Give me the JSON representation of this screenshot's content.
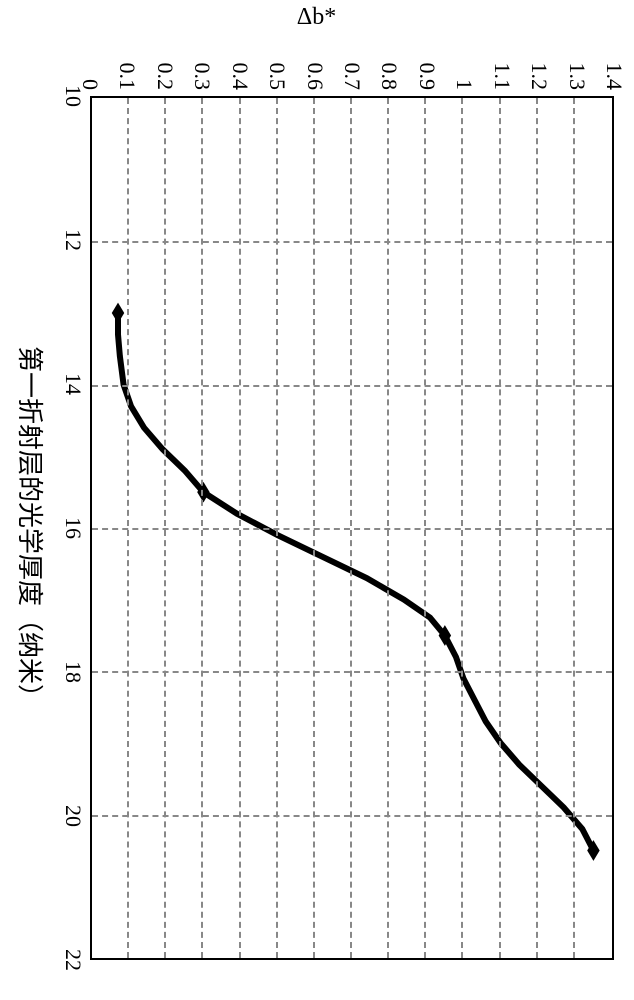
{
  "chart": {
    "type": "line",
    "xlabel": "第一折射层的光学厚度（纳米）",
    "ylabel": "Δb*",
    "xlim": [
      10,
      22
    ],
    "ylim": [
      0,
      1.4
    ],
    "xticks": [
      10,
      12,
      14,
      16,
      18,
      20,
      22
    ],
    "yticks": [
      0,
      0.1,
      0.2,
      0.3,
      0.4,
      0.5,
      0.6,
      0.7,
      0.8,
      0.9,
      1,
      1.1,
      1.2,
      1.3,
      1.4
    ],
    "grid_color": "#808080",
    "grid_dash": true,
    "background_color": "#ffffff",
    "border_color": "#000000",
    "label_fontsize": 24,
    "tick_fontsize": 22,
    "line_color": "#000000",
    "line_width": 3.0,
    "marker_color": "#000000",
    "marker_style": "diamond",
    "marker_size": 16,
    "data_points": [
      {
        "x": 13.0,
        "y": 0.07
      },
      {
        "x": 15.5,
        "y": 0.3
      },
      {
        "x": 17.5,
        "y": 0.95
      },
      {
        "x": 20.5,
        "y": 1.35
      }
    ],
    "curve": [
      {
        "x": 13.0,
        "y": 0.07
      },
      {
        "x": 13.3,
        "y": 0.07
      },
      {
        "x": 13.6,
        "y": 0.075
      },
      {
        "x": 14.0,
        "y": 0.085
      },
      {
        "x": 14.3,
        "y": 0.105
      },
      {
        "x": 14.6,
        "y": 0.14
      },
      {
        "x": 14.9,
        "y": 0.19
      },
      {
        "x": 15.2,
        "y": 0.25
      },
      {
        "x": 15.5,
        "y": 0.3
      },
      {
        "x": 15.8,
        "y": 0.39
      },
      {
        "x": 16.1,
        "y": 0.5
      },
      {
        "x": 16.4,
        "y": 0.62
      },
      {
        "x": 16.7,
        "y": 0.74
      },
      {
        "x": 17.0,
        "y": 0.84
      },
      {
        "x": 17.25,
        "y": 0.91
      },
      {
        "x": 17.5,
        "y": 0.95
      },
      {
        "x": 17.8,
        "y": 0.98
      },
      {
        "x": 18.1,
        "y": 1.0
      },
      {
        "x": 18.4,
        "y": 1.03
      },
      {
        "x": 18.7,
        "y": 1.06
      },
      {
        "x": 19.0,
        "y": 1.1
      },
      {
        "x": 19.3,
        "y": 1.15
      },
      {
        "x": 19.6,
        "y": 1.21
      },
      {
        "x": 19.9,
        "y": 1.27
      },
      {
        "x": 20.2,
        "y": 1.32
      },
      {
        "x": 20.5,
        "y": 1.35
      }
    ]
  }
}
